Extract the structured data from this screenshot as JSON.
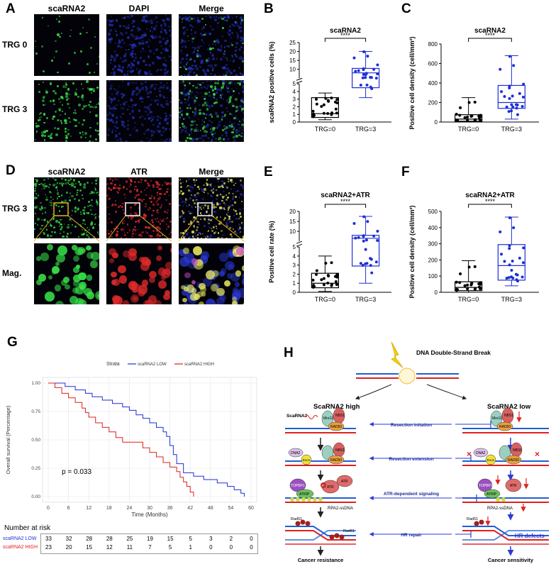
{
  "panelA": {
    "label": "A",
    "columns": [
      "scaRNA2",
      "DAPI",
      "Merge"
    ],
    "rows": [
      "TRG 0",
      "TRG 3"
    ]
  },
  "panelD": {
    "label": "D",
    "columns": [
      "scaRNA2",
      "ATR",
      "Merge"
    ],
    "rows": [
      "TRG 3",
      "Mag."
    ]
  },
  "chart_data": [
    {
      "panel": "B",
      "type": "box",
      "title": "scaRNA2",
      "ylabel": "scaRNA2 positive cells (%)",
      "categories": [
        "TRG=0",
        "TRG=3"
      ],
      "significance": "****",
      "broken_axis": true,
      "yticks": [
        0,
        1,
        2,
        3,
        4,
        5,
        10,
        15,
        20,
        25
      ],
      "boxes": [
        {
          "min": 0.3,
          "q1": 0.6,
          "median": 1.1,
          "q3": 3.2,
          "max": 3.8,
          "color": "#000000"
        },
        {
          "min": 3.2,
          "q1": 4.5,
          "median": 8.0,
          "q3": 10.5,
          "max": 20.0,
          "color": "#1f2fd6"
        }
      ]
    },
    {
      "panel": "C",
      "type": "box",
      "title": "scaRNA2",
      "ylabel": "Positive cell density (cell/mm²)",
      "categories": [
        "TRG=0",
        "TRG=3"
      ],
      "significance": "****",
      "ylim": [
        0,
        800
      ],
      "yticks": [
        0,
        200,
        400,
        600,
        800
      ],
      "boxes": [
        {
          "min": 0,
          "q1": 8,
          "median": 30,
          "q3": 75,
          "max": 250,
          "color": "#000000"
        },
        {
          "min": 30,
          "q1": 140,
          "median": 200,
          "q3": 375,
          "max": 680,
          "color": "#1f2fd6"
        }
      ]
    },
    {
      "panel": "E",
      "type": "box",
      "title": "scaRNA2+ATR",
      "ylabel": "Positive cell rate (%)",
      "categories": [
        "TRG=0",
        "TRG=3"
      ],
      "significance": "****",
      "broken_axis": true,
      "yticks": [
        0,
        1,
        2,
        3,
        4,
        5,
        10,
        15,
        20
      ],
      "boxes": [
        {
          "min": 0.1,
          "q1": 0.5,
          "median": 1.0,
          "q3": 2.1,
          "max": 4.0,
          "color": "#000000"
        },
        {
          "min": 1.0,
          "q1": 2.9,
          "median": 6.5,
          "q3": 8.0,
          "max": 17.5,
          "color": "#1f2fd6"
        }
      ]
    },
    {
      "panel": "F",
      "type": "box",
      "title": "scaRNA2+ATR",
      "ylabel": "Positive cell density (cell/mm²)",
      "categories": [
        "TRG=0",
        "TRG=3"
      ],
      "significance": "****",
      "ylim": [
        0,
        500
      ],
      "yticks": [
        0,
        100,
        200,
        300,
        400,
        500
      ],
      "boxes": [
        {
          "min": 0,
          "q1": 10,
          "median": 30,
          "q3": 65,
          "max": 195,
          "color": "#000000"
        },
        {
          "min": 40,
          "q1": 75,
          "median": 165,
          "q3": 295,
          "max": 465,
          "color": "#1f2fd6"
        }
      ]
    },
    {
      "panel": "G",
      "type": "line",
      "legend_title": "Strata",
      "ylabel": "Overall survival (Percentage)",
      "xlabel": "Time (Months)",
      "xticks": [
        0,
        6,
        12,
        18,
        24,
        30,
        36,
        42,
        48,
        54,
        60
      ],
      "yticks": [
        "0.00",
        "0.25",
        "0.50",
        "0.75",
        "1.00"
      ],
      "pvalue": "p = 0.033",
      "risk_title": "Number at risk",
      "series": [
        {
          "name": "scaRNA2 LOW",
          "color": "#1f2fd6",
          "points": [
            [
              0,
              1.0
            ],
            [
              3,
              1.0
            ],
            [
              5,
              0.97
            ],
            [
              8,
              0.94
            ],
            [
              11,
              0.91
            ],
            [
              13,
              0.88
            ],
            [
              16,
              0.85
            ],
            [
              19,
              0.82
            ],
            [
              22,
              0.79
            ],
            [
              24,
              0.76
            ],
            [
              26,
              0.72
            ],
            [
              28,
              0.69
            ],
            [
              30,
              0.65
            ],
            [
              32,
              0.61
            ],
            [
              34,
              0.57
            ],
            [
              35,
              0.53
            ],
            [
              36,
              0.45
            ],
            [
              37,
              0.37
            ],
            [
              38,
              0.29
            ],
            [
              40,
              0.21
            ],
            [
              43,
              0.18
            ],
            [
              46,
              0.15
            ],
            [
              50,
              0.12
            ],
            [
              53,
              0.09
            ],
            [
              55,
              0.06
            ],
            [
              57,
              0.03
            ],
            [
              58,
              0.0
            ]
          ],
          "risk": [
            33,
            32,
            28,
            28,
            25,
            19,
            15,
            5,
            3,
            2,
            0
          ]
        },
        {
          "name": "scaRNA2 HIGH",
          "color": "#e0201c",
          "points": [
            [
              0,
              1.0
            ],
            [
              2,
              0.96
            ],
            [
              4,
              0.91
            ],
            [
              6,
              0.87
            ],
            [
              8,
              0.83
            ],
            [
              10,
              0.78
            ],
            [
              11,
              0.74
            ],
            [
              12,
              0.7
            ],
            [
              14,
              0.65
            ],
            [
              16,
              0.61
            ],
            [
              18,
              0.57
            ],
            [
              20,
              0.52
            ],
            [
              22,
              0.48
            ],
            [
              26,
              0.48
            ],
            [
              28,
              0.43
            ],
            [
              30,
              0.39
            ],
            [
              32,
              0.35
            ],
            [
              34,
              0.3
            ],
            [
              36,
              0.26
            ],
            [
              38,
              0.22
            ],
            [
              39,
              0.17
            ],
            [
              40,
              0.13
            ],
            [
              41,
              0.09
            ],
            [
              42,
              0.04
            ],
            [
              43,
              0.0
            ]
          ],
          "risk": [
            23,
            20,
            15,
            12,
            11,
            7,
            5,
            1,
            0,
            0,
            0
          ]
        }
      ]
    }
  ],
  "panelH": {
    "label": "H",
    "dsb": "DNA Double-Strand Break",
    "high": "ScaRNA2 high",
    "low": "ScaRNA2 low",
    "scarna_tag": "ScaRNA2",
    "steps": [
      "Resection initation",
      "Resection extension",
      "ATR-dependent signaling",
      "HR repair"
    ],
    "protein": {
      "mre11": "Mre11",
      "rad50": "RAD50",
      "nbs1": "NBS1",
      "dna2": "DNA2",
      "exo1": "Exo1",
      "topbp1": "TOPBP1",
      "atrip": "ATRIP",
      "atr": "ATR",
      "p": "P",
      "rad51": "Rad51",
      "rpa": "RPA2-ssDNA"
    },
    "hr_defects": "HR defects",
    "resistance": "Cancer resistance",
    "sensitivity": "Cancer sensitivity"
  }
}
